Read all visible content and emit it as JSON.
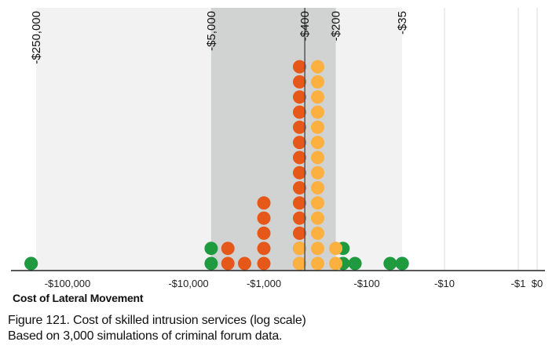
{
  "chart_data": {
    "type": "scatter",
    "subtype": "log-scale dot plot",
    "xlabel": "Cost of Lateral Movement",
    "x_scale": "log",
    "x_direction": "more negative costs to the left",
    "xlim": [
      -200000,
      0
    ],
    "x_ticks": [
      {
        "value": -100000,
        "label": "-$100,000"
      },
      {
        "value": -10000,
        "label": "-$10,000"
      },
      {
        "value": -1000,
        "label": "-$1,000"
      },
      {
        "value": -100,
        "label": "-$100"
      },
      {
        "value": -10,
        "label": "-$10"
      },
      {
        "value": -1,
        "label": "-$1"
      },
      {
        "value": 0,
        "label": "$0"
      }
    ],
    "reference_lines": [
      {
        "value": -250000,
        "label": "-$250,000"
      },
      {
        "value": -5000,
        "label": "-$5,000"
      },
      {
        "value": -400,
        "label": "-$400"
      },
      {
        "value": -200,
        "label": "-$200"
      },
      {
        "value": -35,
        "label": "-$35"
      }
    ],
    "median_line": -400,
    "bands": [
      {
        "from": -250000,
        "to": -35,
        "color": "#f2f2f2"
      },
      {
        "from": -5000,
        "to": -200,
        "color": "#d1d3d2"
      }
    ],
    "colors": {
      "blue": "#1f77c7",
      "green": "#1f9a3f",
      "dark_orange": "#e5581a",
      "light_orange": "#fbb040",
      "median_line": "#555555",
      "band_outer": "#f2f2f2",
      "band_inner": "#d1d3d2",
      "gridline": "#d9d9d9"
    },
    "series": [
      {
        "color": "blue",
        "points": [
          {
            "x": -200000,
            "count": 1
          },
          {
            "x": -35,
            "count": 1
          }
        ]
      },
      {
        "color": "green",
        "points": [
          {
            "x": -200000,
            "count": 1
          },
          {
            "x": -5000,
            "count": 2
          },
          {
            "x": -170,
            "count": 2
          },
          {
            "x": -130,
            "count": 1
          },
          {
            "x": -50,
            "count": 1
          },
          {
            "x": -35,
            "count": 1
          }
        ]
      },
      {
        "color": "dark_orange",
        "points": [
          {
            "x": -3000,
            "count": 2
          },
          {
            "x": -1800,
            "count": 1
          },
          {
            "x": -1000,
            "count": 5
          },
          {
            "x": -450,
            "count": 14
          }
        ]
      },
      {
        "color": "light_orange",
        "points": [
          {
            "x": -450,
            "count": 2
          },
          {
            "x": -300,
            "count": 14
          },
          {
            "x": -200,
            "count": 2
          }
        ]
      }
    ]
  },
  "caption": {
    "line1": "Figure 121. Cost of skilled intrusion services (log scale)",
    "line2": "Based on 3,000 simulations of criminal forum data."
  }
}
